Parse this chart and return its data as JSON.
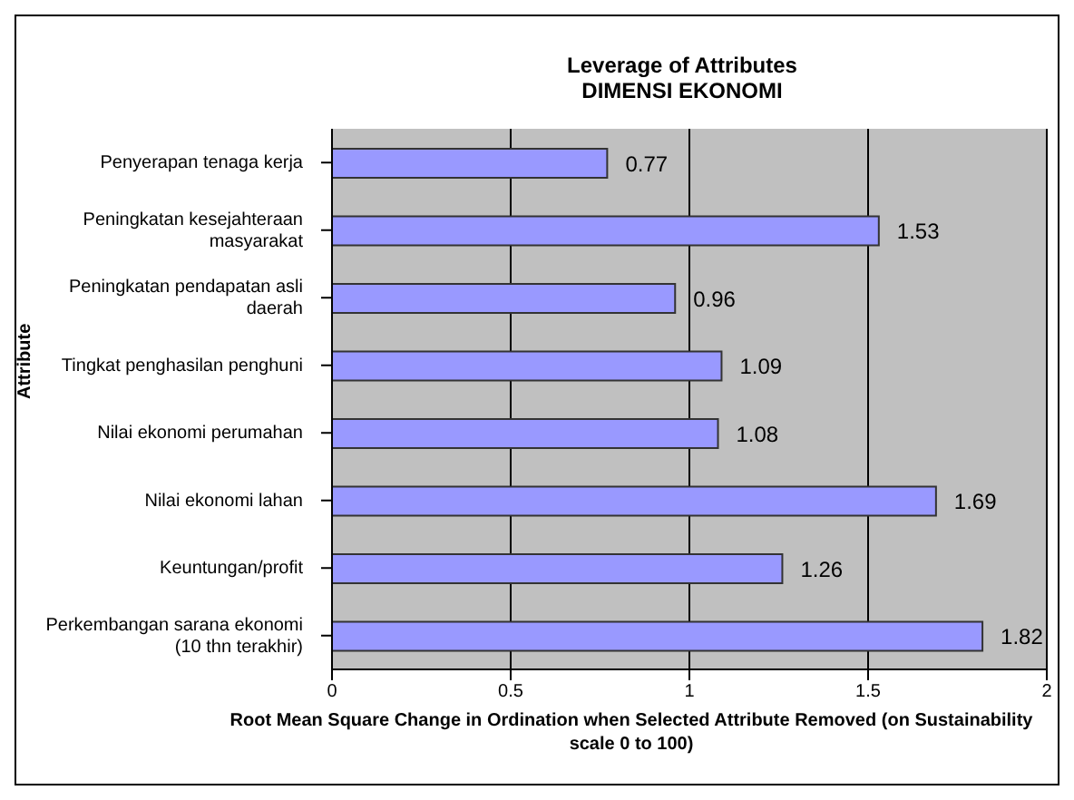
{
  "chart_data": {
    "type": "bar",
    "orientation": "horizontal",
    "title": "Leverage of Attributes\nDIMENSI EKONOMI",
    "xlabel": "Root Mean Square Change in Ordination when Selected Attribute Removed (on Sustainability scale 0 to 100)",
    "ylabel": "Attribute",
    "categories": [
      "Penyerapan tenaga kerja",
      "Peningkatan kesejahteraan masyarakat",
      "Peningkatan pendapatan asli daerah",
      "Tingkat penghasilan penghuni",
      "Nilai ekonomi perumahan",
      "Nilai ekonomi lahan",
      "Keuntungan/profit",
      "Perkembangan sarana ekonomi (10 thn terakhir)"
    ],
    "values": [
      0.77,
      1.53,
      0.96,
      1.09,
      1.08,
      1.69,
      1.26,
      1.82
    ],
    "color": "#9999ff",
    "xlim": [
      0,
      2
    ],
    "xticks": [
      0,
      0.5,
      1,
      1.5,
      2
    ],
    "grid": "x",
    "data_labels": true
  }
}
